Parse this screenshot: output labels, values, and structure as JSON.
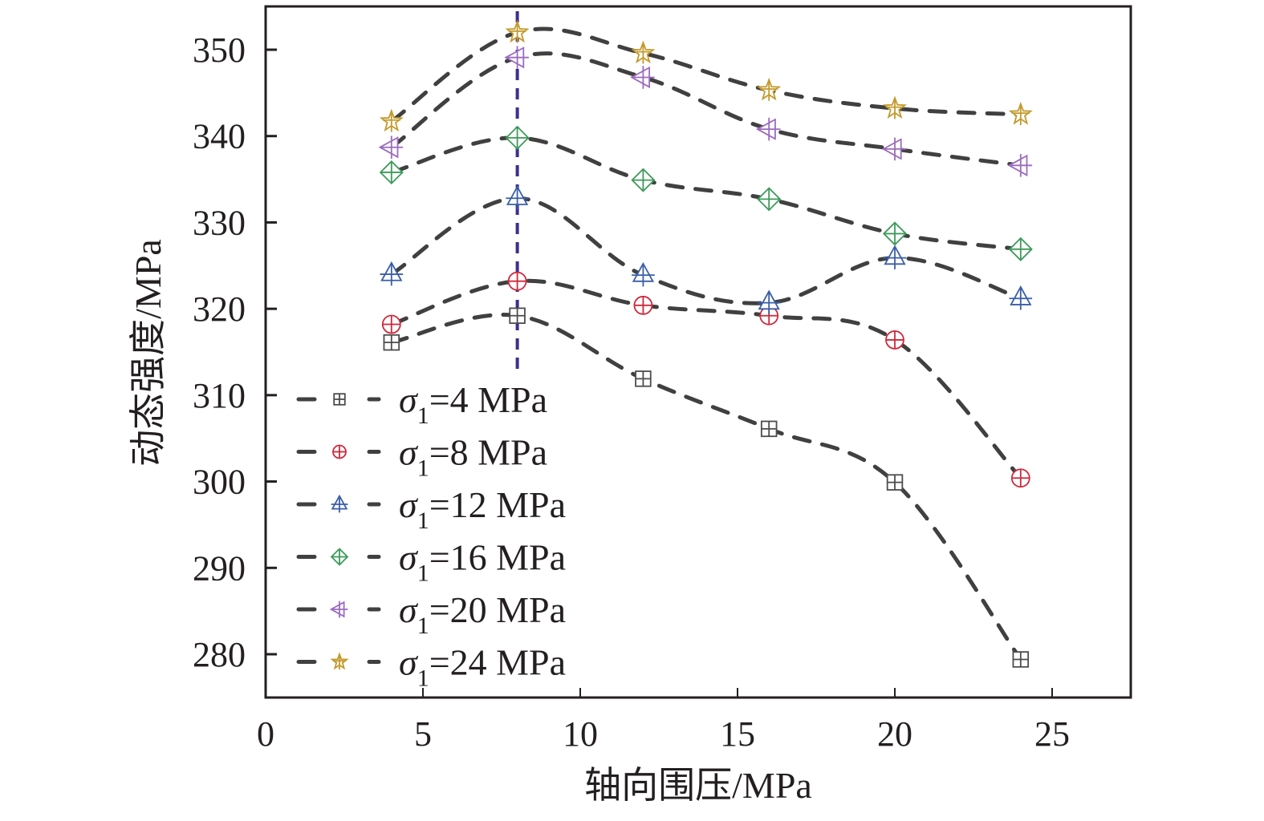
{
  "chart_data": {
    "type": "line",
    "title": "",
    "xlabel": "轴向围压/MPa",
    "ylabel": "动态强度/MPa",
    "xlim": [
      0,
      27.5
    ],
    "ylim": [
      275,
      355
    ],
    "xticks": [
      0,
      5,
      10,
      15,
      20,
      25
    ],
    "yticks": [
      280,
      290,
      300,
      310,
      320,
      330,
      340,
      350
    ],
    "grid": false,
    "legend_position": "bottom-left",
    "reference_line": {
      "orientation": "vertical",
      "x": 8,
      "color": "#3b2f8f",
      "style": "dashed"
    },
    "x": [
      4,
      8,
      12,
      16,
      20,
      24
    ],
    "series": [
      {
        "name": "σ1=4 MPa",
        "legend_prefix": "σ",
        "legend_sub": "1",
        "legend_suffix": "=4 MPa",
        "marker": "square-plus",
        "color": "#4d4d4d",
        "values": [
          316.1,
          319.2,
          311.9,
          306.1,
          299.9,
          279.4
        ]
      },
      {
        "name": "σ1=8 MPa",
        "legend_prefix": "σ",
        "legend_sub": "1",
        "legend_suffix": "=8 MPa",
        "marker": "circle-plus",
        "color": "#d0283a",
        "values": [
          318.2,
          323.2,
          320.4,
          319.2,
          316.4,
          300.4
        ]
      },
      {
        "name": "σ1=12 MPa",
        "legend_prefix": "σ",
        "legend_sub": "1",
        "legend_suffix": "=12 MPa",
        "marker": "triangle-up-plus",
        "color": "#3a5ea8",
        "values": [
          324.0,
          332.8,
          323.9,
          320.7,
          325.9,
          321.2
        ]
      },
      {
        "name": "σ1=16 MPa",
        "legend_prefix": "σ",
        "legend_sub": "1",
        "legend_suffix": "=16 MPa",
        "marker": "diamond-plus",
        "color": "#3d9a5a",
        "values": [
          335.8,
          339.8,
          334.9,
          332.7,
          328.7,
          326.9
        ]
      },
      {
        "name": "σ1=20 MPa",
        "legend_prefix": "σ",
        "legend_sub": "1",
        "legend_suffix": "=20 MPa",
        "marker": "triangle-left-plus",
        "color": "#9b6bbf",
        "values": [
          338.7,
          349.1,
          346.8,
          340.8,
          338.5,
          336.6
        ]
      },
      {
        "name": "σ1=24 MPa",
        "legend_prefix": "σ",
        "legend_sub": "1",
        "legend_suffix": "=24 MPa",
        "marker": "star-plus",
        "color": "#c49a2c",
        "values": [
          341.7,
          352.0,
          349.6,
          345.3,
          343.2,
          342.5
        ]
      }
    ],
    "line_color": "#404040",
    "line_style": "dashed"
  }
}
